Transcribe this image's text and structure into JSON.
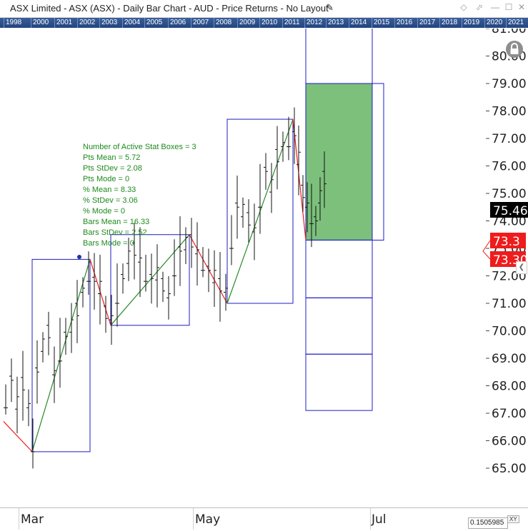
{
  "window": {
    "title": "ASX Limited - ASX (ASX) - Daily Bar Chart - AUD - Price Returns - No Layout",
    "edit_icon": "pencil-icon",
    "buttons": [
      {
        "name": "float-window-button",
        "icon": "diamond-icon",
        "glyph": "◇"
      },
      {
        "name": "link-window-button",
        "icon": "link-arrow-icon",
        "glyph": "⬀"
      },
      {
        "name": "minimize-button",
        "icon": "minimize-icon",
        "glyph": "—"
      },
      {
        "name": "maximize-button",
        "icon": "maximize-icon",
        "glyph": "☐"
      },
      {
        "name": "close-button",
        "icon": "close-icon",
        "glyph": "✕"
      }
    ]
  },
  "year_strip": [
    "1998",
    "2000",
    "2001",
    "2002",
    "2003",
    "2004",
    "2005",
    "2006",
    "2007",
    "2008",
    "2009",
    "2010",
    "2011",
    "2012",
    "2013",
    "2014",
    "2015",
    "2016",
    "2017",
    "2018",
    "2019",
    "2020",
    "2021"
  ],
  "price_axis": {
    "ticks": [
      "81.00",
      "80.00",
      "79.00",
      "78.00",
      "77.00",
      "76.00",
      "75.00",
      "74.00",
      "73.00",
      "72.00",
      "71.00",
      "70.00",
      "69.00",
      "68.00",
      "67.00",
      "66.00",
      "65.00"
    ],
    "last_price": {
      "value": 75.46,
      "label": "75.46",
      "bg": "#000000"
    },
    "marker_a": {
      "value": 73.3,
      "label": "73.3",
      "bg": "#ee1c1c"
    },
    "marker_b": {
      "value": 73.3,
      "label": "73.30",
      "bg": "#ee1c1c"
    }
  },
  "time_axis": {
    "months": [
      "Mar",
      "May",
      "Jul"
    ]
  },
  "stats": {
    "lines": [
      "Number of Active Stat Boxes = 3",
      "Pts Mean = 5.72",
      "Pts StDev = 2.08",
      "Pts Mode = 0",
      "% Mean = 8.33",
      "% StDev = 3.06",
      "% Mode = 0",
      "Bars Mean = 16.33",
      "Bars StDev = 2.52",
      "Bars Mode = 0"
    ],
    "color": "#1d8a1d"
  },
  "stat_boxes": [
    {
      "low": 65.6,
      "high": 72.6,
      "direction": "up"
    },
    {
      "low": 70.2,
      "high": 73.5,
      "direction": "up"
    },
    {
      "low": 71.0,
      "high": 77.7,
      "direction": "up"
    }
  ],
  "projection": {
    "base": 73.3,
    "target_high": 79.0,
    "bands": [
      81.1,
      79.0,
      73.3,
      71.2,
      69.15,
      67.1
    ],
    "fill": "#7cc07c"
  },
  "zigzag": [
    {
      "price": 66.7,
      "color": "#ee1c1c"
    },
    {
      "price": 65.6,
      "color": "#2a8a2a"
    },
    {
      "price": 72.6,
      "color": "#ee1c1c"
    },
    {
      "price": 70.2,
      "color": "#2a8a2a"
    },
    {
      "price": 73.5,
      "color": "#ee1c1c"
    },
    {
      "price": 71.0,
      "color": "#2a8a2a"
    },
    {
      "price": 77.7,
      "color": "#ee1c1c"
    },
    {
      "price": 73.3,
      "color": null
    }
  ],
  "icons": {
    "lock": "lock-icon",
    "collapse": "chevron-left-icon"
  },
  "readout": {
    "value": "0.1505985",
    "xy_label": "XY"
  },
  "colors": {
    "box_stroke": "#1c1cc4",
    "up_line": "#2a8a2a",
    "down_line": "#ee1c1c",
    "bars": "#111111"
  }
}
